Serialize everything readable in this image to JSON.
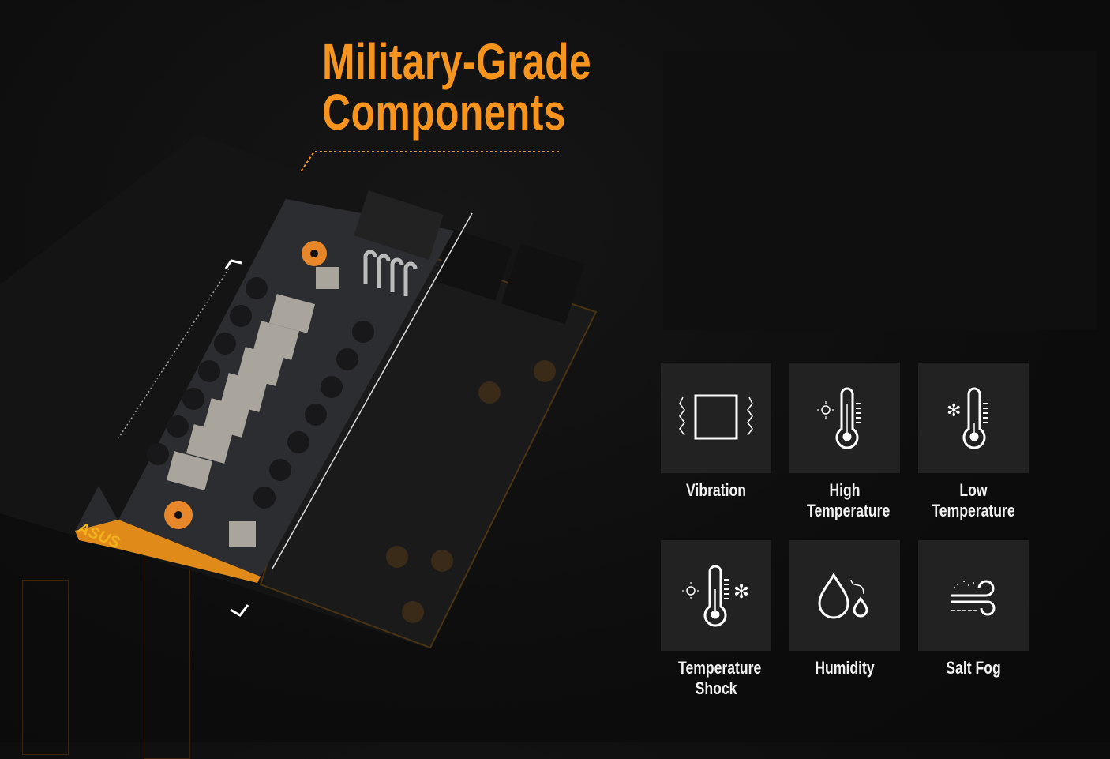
{
  "header": {
    "title_line1": "Military-Grade",
    "title_line2": "Components"
  },
  "accent_color": "#f7941d",
  "tiles": [
    {
      "label": "Vibration",
      "icon": "vibration-icon"
    },
    {
      "label": "High Temperature",
      "icon": "high-temperature-icon"
    },
    {
      "label": "Low Temperature",
      "icon": "low-temperature-icon"
    },
    {
      "label": "Temperature Shock",
      "icon": "temperature-shock-icon"
    },
    {
      "label": "Humidity",
      "icon": "humidity-icon"
    },
    {
      "label": "Salt Fog",
      "icon": "salt-fog-icon"
    }
  ],
  "image": {
    "logo_text": "ASUS",
    "subject": "graphics-card-pcb"
  }
}
